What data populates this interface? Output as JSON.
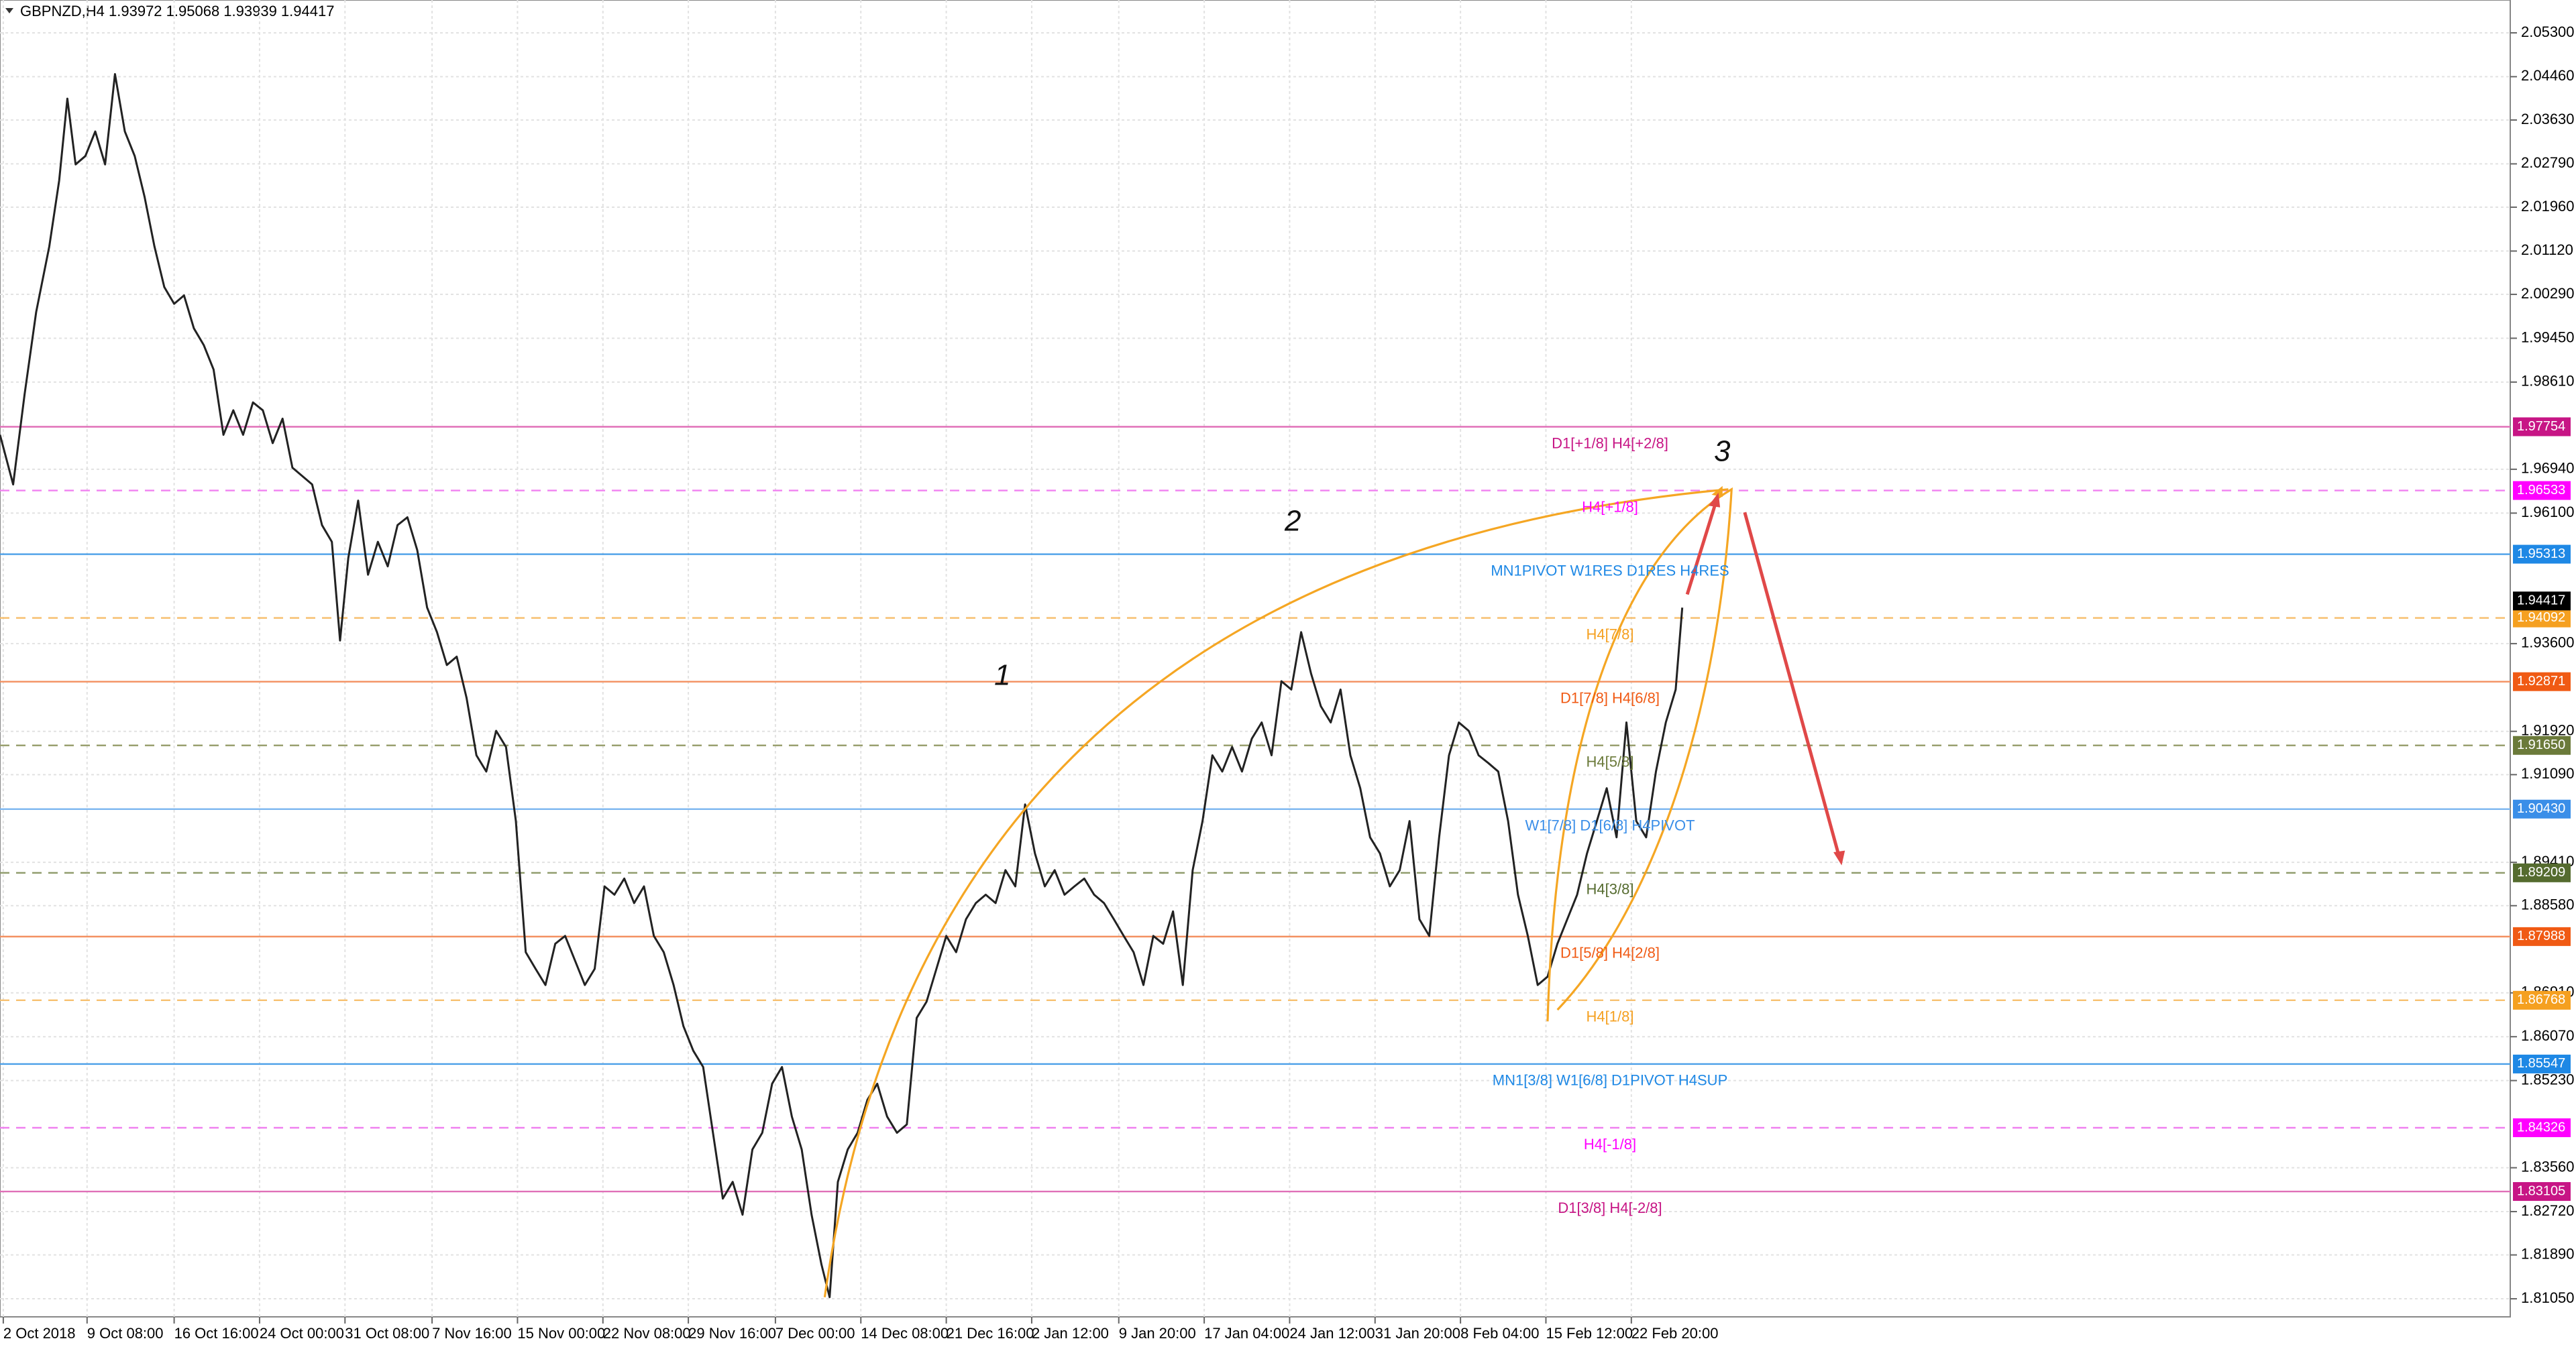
{
  "chart_data": {
    "type": "line",
    "title": "GBPNZD,H4  1.93972 1.95068 1.93939 1.94417",
    "xlim": [
      0,
      764
    ],
    "ylim": [
      1.80704,
      2.05929
    ],
    "grid": true,
    "xticks": [
      {
        "value": 1,
        "label": "2 Oct 2018"
      },
      {
        "value": 26.5,
        "label": "9 Oct 08:00"
      },
      {
        "value": 53,
        "label": "16 Oct 16:00"
      },
      {
        "value": 79,
        "label": "24 Oct 00:00"
      },
      {
        "value": 105,
        "label": "31 Oct 08:00"
      },
      {
        "value": 131.5,
        "label": "7 Nov 16:00"
      },
      {
        "value": 157.5,
        "label": "15 Nov 00:00"
      },
      {
        "value": 183.5,
        "label": "22 Nov 08:00"
      },
      {
        "value": 209.5,
        "label": "29 Nov 16:00"
      },
      {
        "value": 236,
        "label": "7 Dec 00:00"
      },
      {
        "value": 262,
        "label": "14 Dec 08:00"
      },
      {
        "value": 288,
        "label": "21 Dec 16:00"
      },
      {
        "value": 314,
        "label": "2 Jan 12:00"
      },
      {
        "value": 340.5,
        "label": "9 Jan 20:00"
      },
      {
        "value": 366.5,
        "label": "17 Jan 04:00"
      },
      {
        "value": 392.5,
        "label": "24 Jan 12:00"
      },
      {
        "value": 418.5,
        "label": "31 Jan 20:00"
      },
      {
        "value": 444.5,
        "label": "8 Feb 04:00"
      },
      {
        "value": 470.5,
        "label": "15 Feb 12:00"
      },
      {
        "value": 496.5,
        "label": "22 Feb 20:00"
      }
    ],
    "yticks": [
      {
        "value": 2.053,
        "label": "2.05300"
      },
      {
        "value": 2.0446,
        "label": "2.04460"
      },
      {
        "value": 2.0363,
        "label": "2.03630"
      },
      {
        "value": 2.0279,
        "label": "2.02790"
      },
      {
        "value": 2.0196,
        "label": "2.01960"
      },
      {
        "value": 2.0112,
        "label": "2.01120"
      },
      {
        "value": 2.0029,
        "label": "2.00290"
      },
      {
        "value": 1.9945,
        "label": "1.99450"
      },
      {
        "value": 1.9861,
        "label": "1.98610"
      },
      {
        "value": 1.9694,
        "label": "1.96940"
      },
      {
        "value": 1.961,
        "label": "1.96100"
      },
      {
        "value": 1.936,
        "label": "1.93600"
      },
      {
        "value": 1.9192,
        "label": "1.91920"
      },
      {
        "value": 1.9109,
        "label": "1.91090"
      },
      {
        "value": 1.8941,
        "label": "1.89410"
      },
      {
        "value": 1.8858,
        "label": "1.88580"
      },
      {
        "value": 1.8691,
        "label": "1.86910"
      },
      {
        "value": 1.8607,
        "label": "1.86070"
      },
      {
        "value": 1.8523,
        "label": "1.85230"
      },
      {
        "value": 1.8356,
        "label": "1.83560"
      },
      {
        "value": 1.8272,
        "label": "1.82720"
      },
      {
        "value": 1.8189,
        "label": "1.81890"
      },
      {
        "value": 1.8105,
        "label": "1.81050"
      }
    ],
    "series": [
      {
        "name": "GBPNZD",
        "color": "#222222",
        "x": [
          0,
          4,
          7.5,
          11,
          15,
          18,
          20.5,
          23,
          26,
          29,
          32,
          35,
          38,
          41,
          44,
          47,
          50,
          53,
          56,
          59,
          62,
          65,
          68,
          71,
          74,
          77,
          80,
          83,
          86,
          89,
          92,
          95,
          98,
          101,
          103.5,
          106,
          109,
          112,
          115,
          118,
          121,
          124,
          127,
          130,
          133,
          136,
          139,
          142,
          145,
          148,
          151,
          154,
          157,
          160,
          163,
          166,
          169,
          172,
          175,
          178,
          181,
          184,
          187,
          190,
          193,
          196,
          199,
          202,
          205,
          208,
          211,
          214,
          217,
          220,
          223,
          226,
          229,
          232,
          235,
          238,
          241,
          244,
          247,
          250,
          252.5,
          255,
          258,
          261,
          264,
          267,
          270,
          273,
          276,
          279,
          282,
          285,
          288,
          291,
          294,
          297,
          300,
          303,
          306,
          309,
          312,
          315,
          318,
          321,
          324,
          327,
          330,
          333,
          336,
          339,
          342,
          345,
          348,
          351,
          354,
          357,
          360,
          363,
          366,
          369,
          372,
          375,
          378,
          381,
          384,
          387,
          390,
          393,
          396,
          399,
          402,
          405,
          408,
          411,
          414,
          417,
          420,
          423,
          426,
          429,
          432,
          435,
          438,
          441,
          444,
          447,
          450,
          453,
          456,
          459,
          462,
          465,
          468,
          471,
          474,
          477,
          480,
          483,
          486,
          489,
          492,
          495,
          498,
          501,
          504,
          507,
          510,
          512
        ],
        "values": [
          1.976,
          1.9665,
          1.9838,
          1.9995,
          2.0121,
          2.0247,
          2.0404,
          2.0278,
          2.0294,
          2.0341,
          2.0278,
          2.0451,
          2.0341,
          2.0294,
          2.0216,
          2.0121,
          2.0043,
          2.0011,
          2.0027,
          1.9964,
          1.9932,
          1.9885,
          1.976,
          1.9807,
          1.976,
          1.9822,
          1.9807,
          1.9744,
          1.9791,
          1.9697,
          1.9681,
          1.9665,
          1.9587,
          1.9555,
          1.9366,
          1.9524,
          1.9634,
          1.9492,
          1.9555,
          1.9508,
          1.9587,
          1.9602,
          1.9539,
          1.9429,
          1.9382,
          1.9319,
          1.9335,
          1.9256,
          1.9146,
          1.9115,
          1.9193,
          1.9162,
          1.902,
          1.8769,
          1.8737,
          1.8706,
          1.8785,
          1.88,
          1.8753,
          1.8706,
          1.8737,
          1.8895,
          1.8879,
          1.891,
          1.8863,
          1.8895,
          1.88,
          1.8769,
          1.8706,
          1.8627,
          1.858,
          1.8549,
          1.8423,
          1.8297,
          1.8329,
          1.8266,
          1.8391,
          1.8423,
          1.8517,
          1.8549,
          1.8454,
          1.8391,
          1.8266,
          1.8171,
          1.8108,
          1.8329,
          1.8391,
          1.8423,
          1.8486,
          1.8517,
          1.8454,
          1.8423,
          1.8439,
          1.8643,
          1.8674,
          1.8737,
          1.88,
          1.8769,
          1.8832,
          1.8863,
          1.8879,
          1.8863,
          1.8926,
          1.8895,
          1.9052,
          1.8958,
          1.8895,
          1.8926,
          1.8879,
          1.8895,
          1.891,
          1.8879,
          1.8863,
          1.8832,
          1.88,
          1.8769,
          1.8706,
          1.88,
          1.8785,
          1.8847,
          1.8706,
          1.8926,
          1.902,
          1.9146,
          1.9115,
          1.9162,
          1.9115,
          1.9178,
          1.9209,
          1.9146,
          1.9288,
          1.9272,
          1.9382,
          1.9303,
          1.924,
          1.9209,
          1.9272,
          1.9146,
          1.9083,
          1.8989,
          1.8958,
          1.8895,
          1.8926,
          1.902,
          1.8832,
          1.88,
          1.8989,
          1.9146,
          1.9209,
          1.9193,
          1.9146,
          1.9131,
          1.9115,
          1.902,
          1.8879,
          1.88,
          1.8706,
          1.8722,
          1.8785,
          1.8832,
          1.8879,
          1.8958,
          1.902,
          1.9083,
          1.8989,
          1.9209,
          1.902,
          1.8989,
          1.9115,
          1.9209,
          1.9272,
          1.9429
        ]
      }
    ],
    "levels": [
      {
        "value": 1.97754,
        "value_label": "1.97754",
        "label": "D1[+1/8] H4[+2/8]",
        "color": "#c71585",
        "line_color": "#e070b8",
        "dashed": false
      },
      {
        "value": 1.96533,
        "value_label": "1.96533",
        "label": "H4[+1/8]",
        "color": "#ff00ff",
        "line_color": "#f080f0",
        "dashed": true
      },
      {
        "value": 1.95313,
        "value_label": "1.95313",
        "label": "MN1PIVOT W1RES D1RES H4RES",
        "color": "#1e88e5",
        "line_color": "#4a9fe8",
        "dashed": false
      },
      {
        "value": 1.94092,
        "value_label": "1.94092",
        "label": "H4[7/8]",
        "color": "#f5a020",
        "line_color": "#f7c070",
        "dashed": true
      },
      {
        "value": 1.92871,
        "value_label": "1.92871",
        "label": "D1[7/8] H4[6/8]",
        "color": "#f05a14",
        "line_color": "#f39060",
        "dashed": false
      },
      {
        "value": 1.9165,
        "value_label": "1.91650",
        "label": "H4[5/8]",
        "color": "#6b7a3a",
        "line_color": "#9aa070",
        "dashed": true
      },
      {
        "value": 1.9043,
        "value_label": "1.90430",
        "label": "W1[7/8] D1[6/8] H4PIVOT",
        "color": "#3a8ee8",
        "line_color": "#80b8f0",
        "dashed": false
      },
      {
        "value": 1.89209,
        "value_label": "1.89209",
        "label": "H4[3/8]",
        "color": "#556b2f",
        "line_color": "#8e9a6a",
        "dashed": true
      },
      {
        "value": 1.87988,
        "value_label": "1.87988",
        "label": "D1[5/8] H4[2/8]",
        "color": "#f05a14",
        "line_color": "#f39060",
        "dashed": false
      },
      {
        "value": 1.86768,
        "value_label": "1.86768",
        "label": "H4[1/8]",
        "color": "#f5a020",
        "line_color": "#f7c070",
        "dashed": true
      },
      {
        "value": 1.85547,
        "value_label": "1.85547",
        "label": "MN1[3/8] W1[6/8] D1PIVOT H4SUP",
        "color": "#1e88e5",
        "line_color": "#4a9fe8",
        "dashed": false
      },
      {
        "value": 1.84326,
        "value_label": "1.84326",
        "label": "H4[-1/8]",
        "color": "#ff00ff",
        "line_color": "#f080f0",
        "dashed": true
      },
      {
        "value": 1.83105,
        "value_label": "1.83105",
        "label": "D1[3/8] H4[-2/8]",
        "color": "#c71585",
        "line_color": "#e070b8",
        "dashed": false
      }
    ],
    "last_price": 1.94417,
    "annotations": [
      "1",
      "2",
      "3"
    ]
  }
}
